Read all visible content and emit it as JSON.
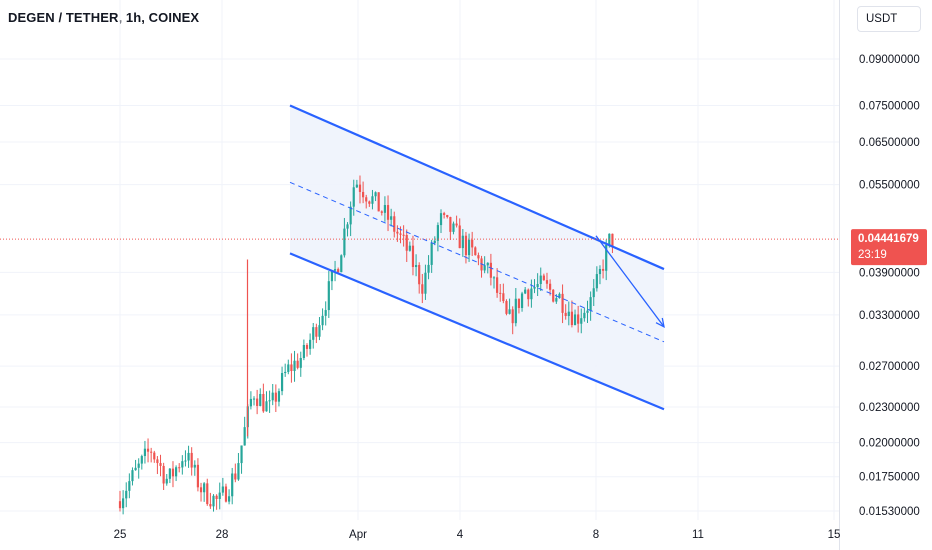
{
  "header": {
    "title": "DEGEN / TETHER, 1h, COINEX"
  },
  "price_axis": {
    "currency": "USDT"
  },
  "last_price": {
    "value": "0.04441679",
    "countdown": "23:19"
  },
  "colors": {
    "up": "#26a69a",
    "down": "#ef5350",
    "channel": "#2962ff",
    "channel_fill": "#eef3fc",
    "grid": "#f0f3fa",
    "price_line": "#ef5350"
  },
  "chart_data": {
    "type": "candlestick",
    "title": "DEGEN / TETHER, 1h, COINEX",
    "xlabel": "",
    "ylabel": "",
    "scale": "log",
    "ylim": [
      0.015,
      0.1
    ],
    "x_ticks": [
      {
        "label": "25",
        "date": "Mar 25"
      },
      {
        "label": "28",
        "date": "Mar 28"
      },
      {
        "label": "Apr",
        "date": "Apr 1"
      },
      {
        "label": "4",
        "date": "Apr 4"
      },
      {
        "label": "8",
        "date": "Apr 8"
      },
      {
        "label": "11",
        "date": "Apr 11"
      },
      {
        "label": "15",
        "date": "Apr 15"
      }
    ],
    "y_ticks": [
      "0.09000000",
      "0.07500000",
      "0.06500000",
      "0.05500000",
      "0.03900000",
      "0.03300000",
      "0.02700000",
      "0.02300000",
      "0.02000000",
      "0.01750000",
      "0.01530000"
    ],
    "last_price": 0.04441679,
    "price_path": [
      {
        "date": "Mar 25",
        "price": 0.0159
      },
      {
        "date": "Mar 26",
        "price": 0.0195
      },
      {
        "date": "Mar 26",
        "price": 0.0172
      },
      {
        "date": "Mar 27",
        "price": 0.0192
      },
      {
        "date": "Mar 27",
        "price": 0.0166
      },
      {
        "date": "Mar 28",
        "price": 0.0158
      },
      {
        "date": "Mar 28",
        "price": 0.0178
      },
      {
        "date": "Mar 29",
        "price": 0.0245
      },
      {
        "date": "Mar 29",
        "price": 0.0228
      },
      {
        "date": "Mar 30",
        "price": 0.0265
      },
      {
        "date": "Mar 30",
        "price": 0.0282
      },
      {
        "date": "Mar 31",
        "price": 0.033
      },
      {
        "date": "Mar 31",
        "price": 0.0405
      },
      {
        "date": "Apr 1",
        "price": 0.056
      },
      {
        "date": "Apr 1",
        "price": 0.052
      },
      {
        "date": "Apr 2",
        "price": 0.048
      },
      {
        "date": "Apr 2",
        "price": 0.043
      },
      {
        "date": "Apr 3",
        "price": 0.037
      },
      {
        "date": "Apr 3",
        "price": 0.048
      },
      {
        "date": "Apr 4",
        "price": 0.045
      },
      {
        "date": "Apr 5",
        "price": 0.0385
      },
      {
        "date": "Apr 5",
        "price": 0.032
      },
      {
        "date": "Apr 6",
        "price": 0.0365
      },
      {
        "date": "Apr 6",
        "price": 0.037
      },
      {
        "date": "Apr 7",
        "price": 0.0355
      },
      {
        "date": "Apr 7",
        "price": 0.0325
      },
      {
        "date": "Apr 8",
        "price": 0.0352
      },
      {
        "date": "Apr 8",
        "price": 0.0444
      }
    ],
    "annotations": [
      {
        "type": "channel-upper",
        "from": {
          "date": "Mar 30",
          "price": 0.075
        },
        "to": {
          "date": "Apr 10",
          "price": 0.0395
        }
      },
      {
        "type": "channel-lower",
        "from": {
          "date": "Mar 30",
          "price": 0.042
        },
        "to": {
          "date": "Apr 10",
          "price": 0.0228
        }
      },
      {
        "type": "channel-midline",
        "from": {
          "date": "Mar 30",
          "price": 0.0555
        },
        "to": {
          "date": "Apr 10",
          "price": 0.0297
        }
      },
      {
        "type": "arrow",
        "from": {
          "date": "Apr 8",
          "price": 0.045
        },
        "to": {
          "date": "Apr 10",
          "price": 0.0315
        }
      }
    ]
  }
}
